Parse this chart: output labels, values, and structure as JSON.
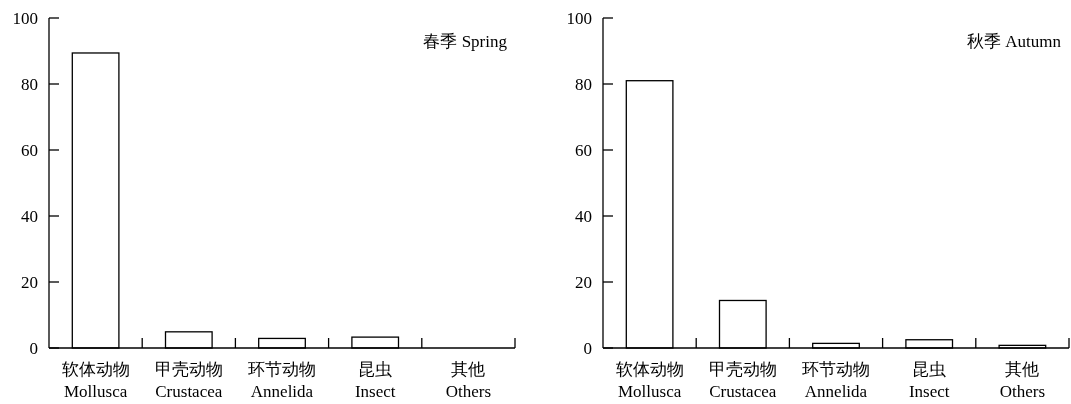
{
  "chart_data": [
    {
      "type": "bar",
      "title": "春季 Spring",
      "categories": [
        "软体动物\nMollusca",
        "甲壳动物\nCrustacea",
        "环节动物\nAnnelida",
        "昆虫\nInsect",
        "其他\nOthers"
      ],
      "values": [
        89.4,
        4.9,
        2.9,
        3.3,
        0
      ],
      "color": "#ffffff",
      "ylim": [
        0,
        100
      ],
      "yticks": [
        0,
        20,
        40,
        60,
        80,
        100
      ]
    },
    {
      "type": "bar",
      "title": "秋季 Autumn",
      "categories": [
        "软体动物\nMollusca",
        "甲壳动物\nCrustacea",
        "环节动物\nAnnelida",
        "昆虫\nInsect",
        "其他\nOthers"
      ],
      "values": [
        81.0,
        14.4,
        1.4,
        2.5,
        0.8
      ],
      "color": "#ffffff",
      "ylim": [
        0,
        100
      ],
      "yticks": [
        0,
        20,
        40,
        60,
        80,
        100
      ]
    }
  ]
}
